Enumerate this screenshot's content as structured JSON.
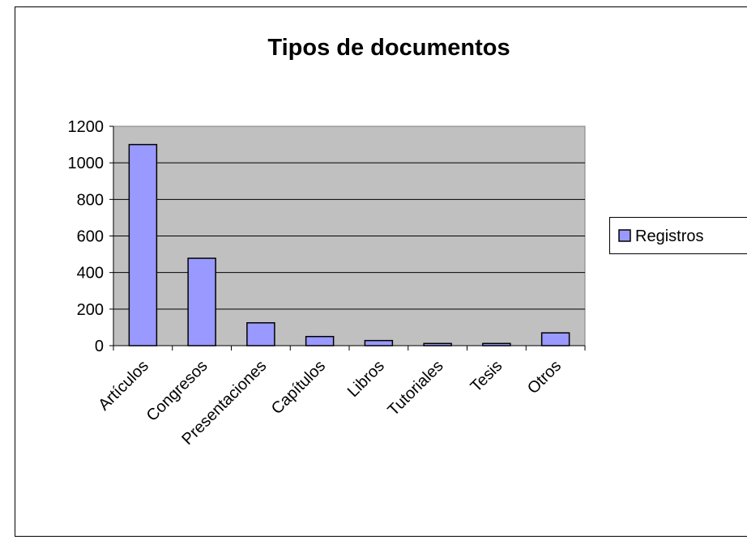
{
  "chart_data": {
    "type": "bar",
    "title": "Tipos de documentos",
    "categories": [
      "Artículos",
      "Congresos",
      "Presentaciones",
      "Capítulos",
      "Libros",
      "Tutoriales",
      "Tesis",
      "Otros"
    ],
    "series": [
      {
        "name": "Registros",
        "color": "#9999ff",
        "values": [
          1100,
          478,
          125,
          50,
          28,
          12,
          12,
          70
        ]
      }
    ],
    "ylim": [
      0,
      1200
    ],
    "yticks": [
      0,
      200,
      400,
      600,
      800,
      1000,
      1200
    ],
    "grid": true,
    "legend": "right"
  }
}
